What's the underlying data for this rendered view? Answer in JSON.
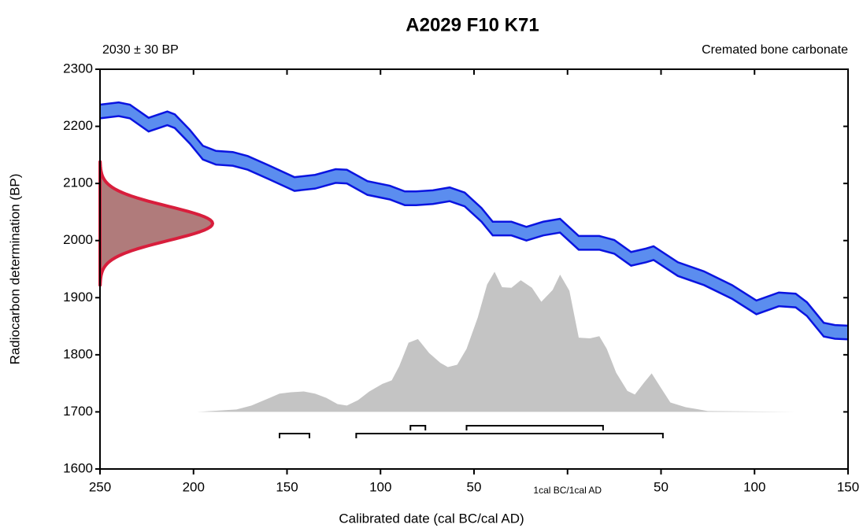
{
  "chart_data": {
    "type": "calibration",
    "title": "A2029 F10 K71",
    "date_label": "2030 ± 30 BP",
    "sample_label": "Cremated bone carbonate",
    "x_label": "Calibrated date (cal BC/cal AD)",
    "y_label": "Radiocarbon determination (BP)",
    "date": {
      "mean": 2030,
      "sigma": 30
    },
    "xlim": [
      -250,
      150
    ],
    "ylim": [
      1600,
      2300
    ],
    "xticks": [
      {
        "value": -250,
        "label": "250"
      },
      {
        "value": -200,
        "label": "200"
      },
      {
        "value": -150,
        "label": "150"
      },
      {
        "value": -100,
        "label": "100"
      },
      {
        "value": -50,
        "label": "50"
      },
      {
        "value": 0,
        "label": "1cal BC/1cal AD"
      },
      {
        "value": 50,
        "label": "50"
      },
      {
        "value": 100,
        "label": "100"
      },
      {
        "value": 150,
        "label": "150"
      }
    ],
    "yticks": [
      1600,
      1700,
      1800,
      1900,
      2000,
      2100,
      2200,
      2300
    ],
    "curve": {
      "color": "#5b8def",
      "line_color": "#0a14e0",
      "x": [
        -250,
        -240,
        -234,
        -224,
        -214,
        -210,
        -202,
        -195,
        -188,
        -179,
        -171,
        -160,
        -146,
        -135,
        -124,
        -118,
        -107,
        -95,
        -87,
        -81,
        -72,
        -63,
        -55,
        -46,
        -40,
        -30,
        -22,
        -13,
        -4,
        6,
        17,
        25,
        34,
        42,
        46,
        59,
        73,
        88,
        101,
        113,
        122,
        128,
        137,
        143,
        150
      ],
      "upper": [
        2238,
        2242,
        2238,
        2215,
        2226,
        2221,
        2194,
        2166,
        2157,
        2155,
        2148,
        2132,
        2111,
        2115,
        2125,
        2124,
        2104,
        2096,
        2086,
        2086,
        2088,
        2093,
        2084,
        2057,
        2033,
        2033,
        2024,
        2033,
        2038,
        2008,
        2008,
        2001,
        1980,
        1986,
        1990,
        1962,
        1946,
        1922,
        1895,
        1909,
        1907,
        1892,
        1856,
        1852,
        1851
      ],
      "lower": [
        2214,
        2218,
        2214,
        2191,
        2202,
        2197,
        2170,
        2142,
        2133,
        2131,
        2124,
        2108,
        2087,
        2091,
        2101,
        2100,
        2080,
        2072,
        2062,
        2062,
        2064,
        2069,
        2060,
        2033,
        2009,
        2009,
        2000,
        2009,
        2014,
        1984,
        1984,
        1977,
        1956,
        1962,
        1966,
        1938,
        1922,
        1898,
        1871,
        1885,
        1883,
        1868,
        1832,
        1828,
        1827
      ]
    },
    "date_color": "#d81e3c",
    "date_fill": "#b07b7b",
    "posterior": {
      "color": "#c4c4c4",
      "x": [
        -198,
        -177,
        -169,
        -160,
        -154,
        -148,
        -141,
        -135,
        -129,
        -123,
        -118,
        -112,
        -106,
        -99,
        -94,
        -90,
        -85,
        -80,
        -74,
        -68,
        -64,
        -59,
        -54,
        -48,
        -43,
        -39,
        -35,
        -30,
        -25,
        -19,
        -14,
        -8,
        -4,
        1,
        6,
        12,
        17,
        21,
        26,
        32,
        36,
        41,
        45,
        50,
        55,
        63,
        75,
        122
      ],
      "values": [
        0,
        0.017,
        0.045,
        0.096,
        0.13,
        0.14,
        0.146,
        0.13,
        0.1,
        0.056,
        0.045,
        0.084,
        0.146,
        0.2,
        0.225,
        0.326,
        0.494,
        0.52,
        0.42,
        0.35,
        0.32,
        0.337,
        0.45,
        0.674,
        0.91,
        1,
        0.89,
        0.886,
        0.94,
        0.886,
        0.786,
        0.87,
        0.98,
        0.865,
        0.53,
        0.525,
        0.54,
        0.45,
        0.28,
        0.15,
        0.124,
        0.21,
        0.275,
        0.17,
        0.067,
        0.034,
        0.006,
        0
      ]
    },
    "ranges_68": [
      [
        -84,
        -76
      ],
      [
        -54,
        19
      ]
    ],
    "ranges_95": [
      [
        -154,
        -138
      ],
      [
        -113,
        51
      ]
    ]
  }
}
